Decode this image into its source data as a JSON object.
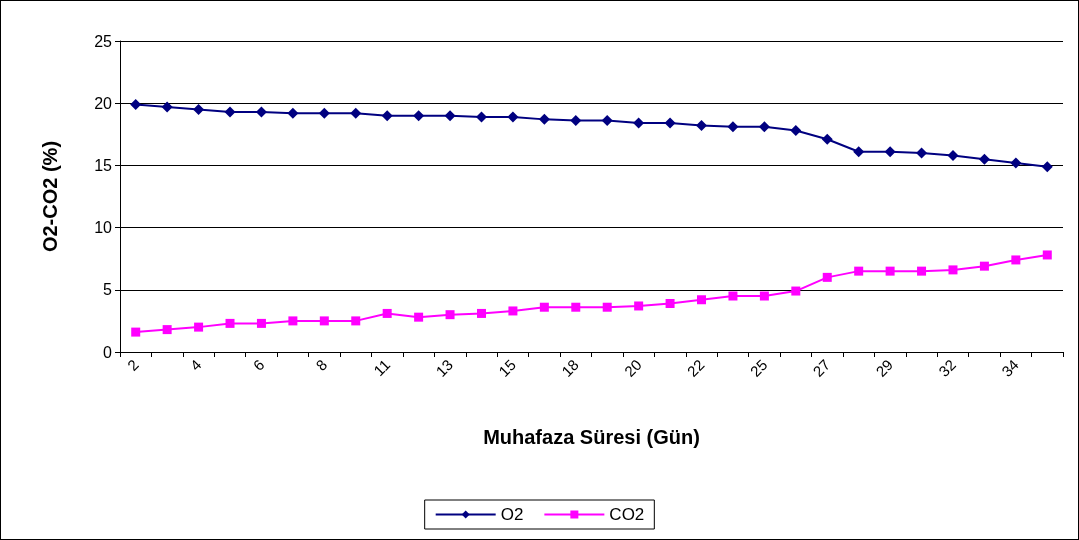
{
  "chart_data": {
    "type": "line",
    "xlabel": "Muhafaza Süresi (Gün)",
    "ylabel": "O2-CO2 (%)",
    "categories": [
      "2",
      null,
      "4",
      null,
      "6",
      null,
      "8",
      null,
      "11",
      null,
      "13",
      null,
      "15",
      null,
      "18",
      null,
      "20",
      null,
      "22",
      null,
      "25",
      null,
      "27",
      null,
      "29",
      null,
      "32",
      null,
      "34",
      null
    ],
    "series": [
      {
        "name": "O2",
        "color": "#000080",
        "marker": "diamond",
        "values": [
          19.9,
          19.7,
          19.5,
          19.3,
          19.3,
          19.2,
          19.2,
          19.2,
          19.0,
          19.0,
          19.0,
          18.9,
          18.9,
          18.7,
          18.6,
          18.6,
          18.4,
          18.4,
          18.2,
          18.1,
          18.1,
          17.8,
          17.1,
          16.1,
          16.1,
          16.0,
          15.8,
          15.5,
          15.2,
          14.9
        ]
      },
      {
        "name": "CO2",
        "color": "#ff00ff",
        "marker": "square",
        "values": [
          1.6,
          1.8,
          2.0,
          2.3,
          2.3,
          2.5,
          2.5,
          2.5,
          3.1,
          2.8,
          3.0,
          3.1,
          3.3,
          3.6,
          3.6,
          3.6,
          3.7,
          3.9,
          4.2,
          4.5,
          4.5,
          4.9,
          6.0,
          6.5,
          6.5,
          6.5,
          6.6,
          6.9,
          7.4,
          7.8
        ]
      }
    ],
    "ylim": [
      0,
      25
    ],
    "yticks": [
      0,
      5,
      10,
      15,
      20,
      25
    ],
    "grid": "y",
    "legend": "bottom",
    "line_style": "solid"
  }
}
